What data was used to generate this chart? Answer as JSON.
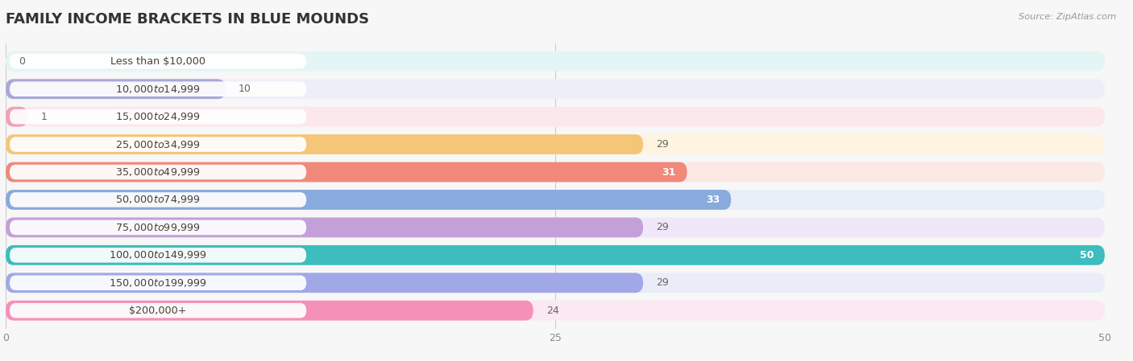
{
  "title": "FAMILY INCOME BRACKETS IN BLUE MOUNDS",
  "source": "Source: ZipAtlas.com",
  "categories": [
    "Less than $10,000",
    "$10,000 to $14,999",
    "$15,000 to $24,999",
    "$25,000 to $34,999",
    "$35,000 to $49,999",
    "$50,000 to $74,999",
    "$75,000 to $99,999",
    "$100,000 to $149,999",
    "$150,000 to $199,999",
    "$200,000+"
  ],
  "values": [
    0,
    10,
    1,
    29,
    31,
    33,
    29,
    50,
    29,
    24
  ],
  "bar_colors": [
    "#5ecece",
    "#a8a8d8",
    "#f4a0b4",
    "#f5c578",
    "#f0897a",
    "#88aadc",
    "#c4a0d8",
    "#3dbdbd",
    "#a0a8e8",
    "#f590b8"
  ],
  "bar_bg_colors": [
    "#e4f5f5",
    "#eeeef8",
    "#fce8ec",
    "#fef4e0",
    "#fce8e4",
    "#e8eff8",
    "#f0e8f8",
    "#e0f5f5",
    "#eaecf8",
    "#fce8f0"
  ],
  "value_inside": [
    false,
    false,
    false,
    false,
    true,
    true,
    false,
    true,
    false,
    false
  ],
  "xlim": [
    0,
    50
  ],
  "xticks": [
    0,
    25,
    50
  ],
  "background_color": "#f7f7f7",
  "title_fontsize": 13,
  "tick_fontsize": 9
}
